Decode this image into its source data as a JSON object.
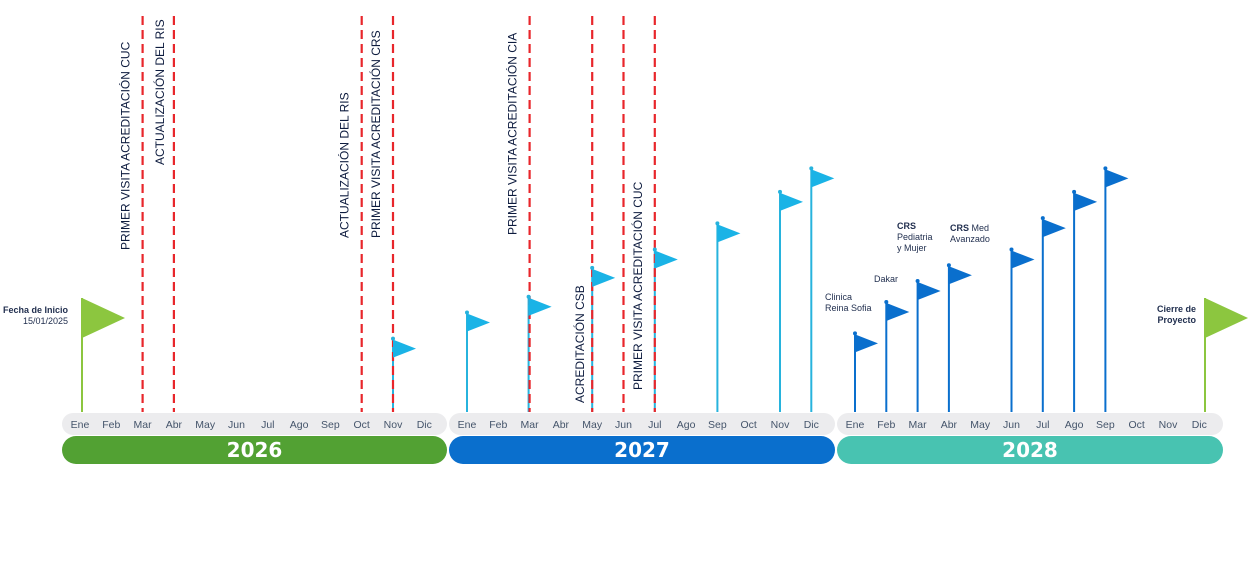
{
  "colors": {
    "year2026": "#52a133",
    "year2027": "#0a6fcd",
    "year2028": "#48c3b1",
    "monthStrip": "#ececee",
    "redDash": "#e8262b",
    "flagLight": "#1ab3e6",
    "flagDark": "#0a6fcd",
    "flagGreen": "#8cc63f",
    "poleLight": "#27b3dd",
    "poleDark": "#0a6fcd"
  },
  "months": [
    "Ene",
    "Feb",
    "Mar",
    "Abr",
    "May",
    "Jun",
    "Jul",
    "Ago",
    "Sep",
    "Oct",
    "Nov",
    "Dic"
  ],
  "years": [
    "2026",
    "2027",
    "2028"
  ],
  "milestones": [
    {
      "label": "PRIMER VISITA ACREDITACIÓN CUC",
      "year": 2026,
      "month": "Mar"
    },
    {
      "label": "ACTUALIZACIÓN DEL RIS",
      "year": 2026,
      "month": "Abr"
    },
    {
      "label": "ACTUALIZACIÓN DEL RIS",
      "year": 2026,
      "month": "Oct"
    },
    {
      "label": "PRIMER VISITA ACREDITACIÓN CRS",
      "year": 2026,
      "month": "Nov"
    },
    {
      "label": "PRIMER VISITA ACREDITACIÓN CIA",
      "year": 2027,
      "month": "Mar"
    },
    {
      "label": "ACREDITACIÓN CSB",
      "year": 2027,
      "month": "May"
    },
    {
      "label": "",
      "year": 2027,
      "month": "Jun"
    },
    {
      "label": "PRIMER VISITA ACREDITACIÓN CUC",
      "year": 2027,
      "month": "Jul"
    }
  ],
  "flags": [
    {
      "year": 2026,
      "month": "Nov",
      "level": 0.28,
      "style": "light"
    },
    {
      "year": 2027,
      "month": "Ene",
      "level": 0.38,
      "style": "light"
    },
    {
      "year": 2027,
      "month": "Mar",
      "level": 0.44,
      "style": "light"
    },
    {
      "year": 2027,
      "month": "May",
      "level": 0.55,
      "style": "light"
    },
    {
      "year": 2027,
      "month": "Jul",
      "level": 0.62,
      "style": "light"
    },
    {
      "year": 2027,
      "month": "Sep",
      "level": 0.72,
      "style": "light"
    },
    {
      "year": 2027,
      "month": "Nov",
      "level": 0.84,
      "style": "light"
    },
    {
      "year": 2027,
      "month": "Dic",
      "level": 0.93,
      "style": "light"
    },
    {
      "year": 2028,
      "month": "Ene",
      "level": 0.3,
      "style": "dark"
    },
    {
      "year": 2028,
      "month": "Feb",
      "level": 0.42,
      "style": "dark"
    },
    {
      "year": 2028,
      "month": "Mar",
      "level": 0.5,
      "style": "dark"
    },
    {
      "year": 2028,
      "month": "Abr",
      "level": 0.56,
      "style": "dark"
    },
    {
      "year": 2028,
      "month": "Jun",
      "level": 0.62,
      "style": "dark"
    },
    {
      "year": 2028,
      "month": "Jul",
      "level": 0.74,
      "style": "dark"
    },
    {
      "year": 2028,
      "month": "Ago",
      "level": 0.84,
      "style": "dark"
    },
    {
      "year": 2028,
      "month": "Sep",
      "level": 0.93,
      "style": "dark"
    }
  ],
  "start": {
    "title": "Fecha de Inicio",
    "date": "15/01/2025"
  },
  "end": {
    "line1": "Cierre de",
    "line2": "Proyecto"
  },
  "site_labels": {
    "clinica": {
      "line1": "Clinica",
      "line2": "Reina Sofia"
    },
    "dakar": "Dakar",
    "crs_ped": {
      "bold": "CRS",
      "line1": "Pediatria",
      "line2": "y Mujer"
    },
    "crs_med": {
      "bold": "CRS",
      "rest": " Med",
      "line2": "Avanzado"
    }
  }
}
